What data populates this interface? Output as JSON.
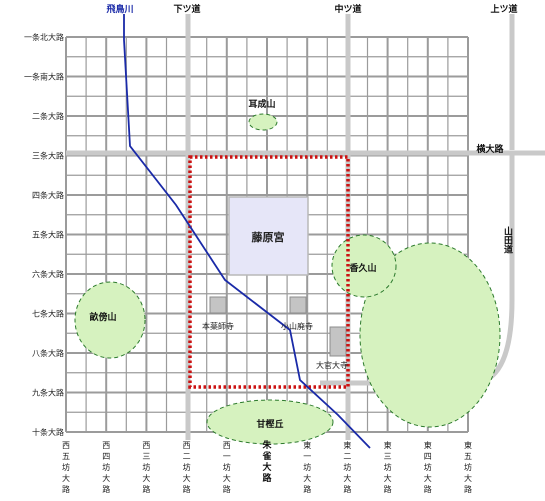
{
  "colors": {
    "minor_road": "#9b9b9b",
    "major_road": "#c9c9c9",
    "river": "#1a2aa8",
    "palace_fill": "#e6e6f8",
    "palace_border": "#b8b8b8",
    "boundary": "#cc1111",
    "hill_fill": "#d6f2bf",
    "hill_border": "#2c7a2c",
    "temple_fill": "#c4c4c4"
  },
  "river": {
    "label": "飛鳥川"
  },
  "roads_top": {
    "shimotsumichi": "下ツ道",
    "nakatsumichi": "中ツ道",
    "kamitsumichi": "上ツ道"
  },
  "road_yokooji": "横大路",
  "road_yamadamichi": "山田道",
  "rows": [
    "一条北大路",
    "一条南大路",
    "二条大路",
    "三条大路",
    "四条大路",
    "五条大路",
    "六条大路",
    "七条大路",
    "八条大路",
    "九条大路",
    "十条大路"
  ],
  "columns": [
    "西五坊大路",
    "西四坊大路",
    "西三坊大路",
    "西二坊大路",
    "西一坊大路",
    "朱雀大路",
    "東一坊大路",
    "東二坊大路",
    "東三坊大路",
    "東四坊大路",
    "東五坊大路"
  ],
  "palace": {
    "label": "藤原宮"
  },
  "hills": {
    "miminashi": "耳成山",
    "kaguyama": "香久山",
    "unebi": "畝傍山",
    "amakashi": "甘樫丘"
  },
  "temples": {
    "motoyakushiji": "本薬師寺",
    "oyamahaiji": "小山廃寺",
    "daikandaiji": "大官大寺"
  }
}
